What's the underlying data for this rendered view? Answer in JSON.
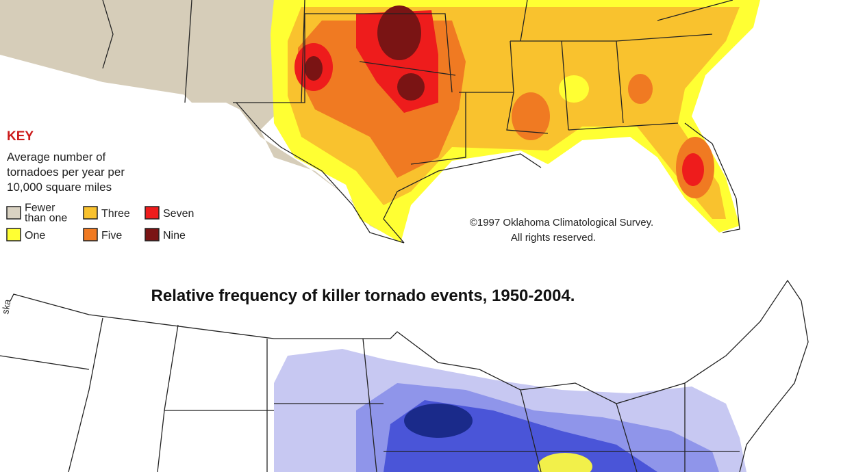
{
  "top_map": {
    "key_title": "KEY",
    "key_description": [
      "Average number of",
      "tornadoes per year per",
      "10,000 square miles"
    ],
    "legend": [
      {
        "label": [
          "Fewer",
          "than one"
        ],
        "color": "#d9d2c2"
      },
      {
        "label": [
          "One"
        ],
        "color": "#ffff33"
      },
      {
        "label": [
          "Three"
        ],
        "color": "#f9c22e"
      },
      {
        "label": [
          "Five"
        ],
        "color": "#f07a22"
      },
      {
        "label": [
          "Seven"
        ],
        "color": "#ee1c1c"
      },
      {
        "label": [
          "Nine"
        ],
        "color": "#7a1414"
      }
    ],
    "copyright": [
      "©1997 Oklahoma Climatological Survey.",
      "All rights reserved."
    ]
  },
  "bottom_map": {
    "title": "Relative frequency of killer tornado events, 1950-2004."
  }
}
